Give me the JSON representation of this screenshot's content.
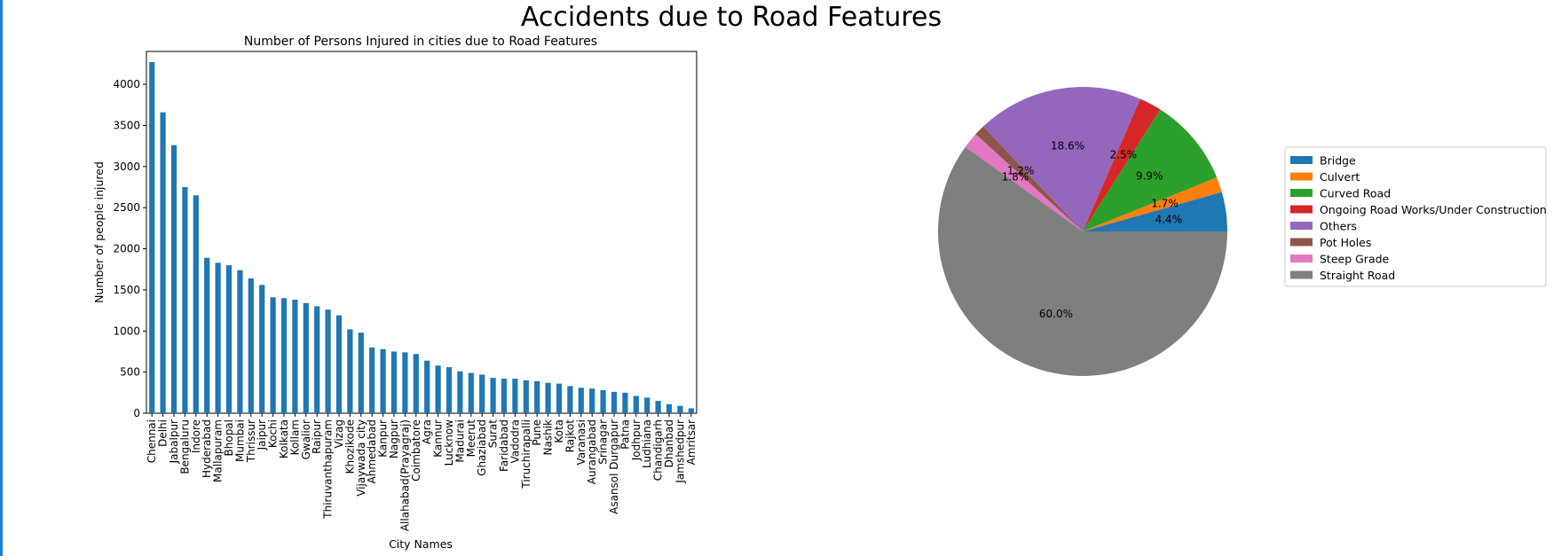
{
  "figure": {
    "suptitle": "Accidents due to Road Features"
  },
  "chart_data": [
    {
      "type": "bar",
      "title": "Number of Persons Injured in cities due to Road Features",
      "xlabel": "City Names",
      "ylabel": "Number of people injured",
      "ylim": [
        0,
        4400
      ],
      "yticks": [
        0,
        500,
        1000,
        1500,
        2000,
        2500,
        3000,
        3500,
        4000
      ],
      "color": "#1f77b4",
      "categories": [
        "Chennai",
        "Delhi",
        "Jabalpur",
        "Bengaluru",
        "Indore",
        "Hyderabad",
        "Mallapuram",
        "Bhopal",
        "Mumbai",
        "Thrissur",
        "Jaipur",
        "Kochi",
        "Kolkata",
        "Kollam",
        "Gwalior",
        "Raipur",
        "Thiruvanthapuram",
        "Vizag",
        "Khozikode",
        "Vijaywada city",
        "Ahmedabad",
        "Kanpur",
        "Nagpur",
        "Allahabad(Prayagraj)",
        "Coimbatore",
        "Agra",
        "Kannur",
        "Lucknow",
        "Madurai",
        "Meerut",
        "Ghaziabad",
        "Surat",
        "Faridabad",
        "Vadodra",
        "Tiruchirapalli",
        "Pune",
        "Nashik",
        "Kota",
        "Rajkot",
        "Varanasi",
        "Aurangabad",
        "Srinagar",
        "Asansol Durgapur",
        "Patna",
        "Jodhpur",
        "Ludhiana",
        "Chandigarh",
        "Dhanbad",
        "Jamshedpur",
        "Amritsar"
      ],
      "values": [
        4270,
        3660,
        3260,
        2750,
        2650,
        1890,
        1830,
        1800,
        1740,
        1640,
        1560,
        1410,
        1400,
        1380,
        1340,
        1300,
        1260,
        1190,
        1020,
        980,
        800,
        780,
        750,
        740,
        720,
        640,
        580,
        560,
        510,
        490,
        470,
        430,
        420,
        420,
        400,
        390,
        370,
        360,
        330,
        310,
        300,
        280,
        260,
        250,
        210,
        190,
        150,
        110,
        90,
        60
      ]
    },
    {
      "type": "pie",
      "labels": [
        "Bridge",
        "Culvert",
        "Curved Road",
        "Ongoing Road Works/Under Construction",
        "Others",
        "Pot Holes",
        "Steep Grade",
        "Straight Road"
      ],
      "values": [
        4.4,
        1.7,
        9.9,
        2.5,
        18.6,
        1.2,
        1.8,
        60.0
      ],
      "pct_labels": [
        "4.4%",
        "1.7%",
        "9.9%",
        "2.5%",
        "18.6%",
        "1.2%",
        "1.8%",
        "60.0%"
      ],
      "colors": [
        "#1f77b4",
        "#ff7f0e",
        "#2ca02c",
        "#d62728",
        "#9467bd",
        "#8c564b",
        "#e377c2",
        "#7f7f7f"
      ],
      "legend_position": "right"
    }
  ]
}
